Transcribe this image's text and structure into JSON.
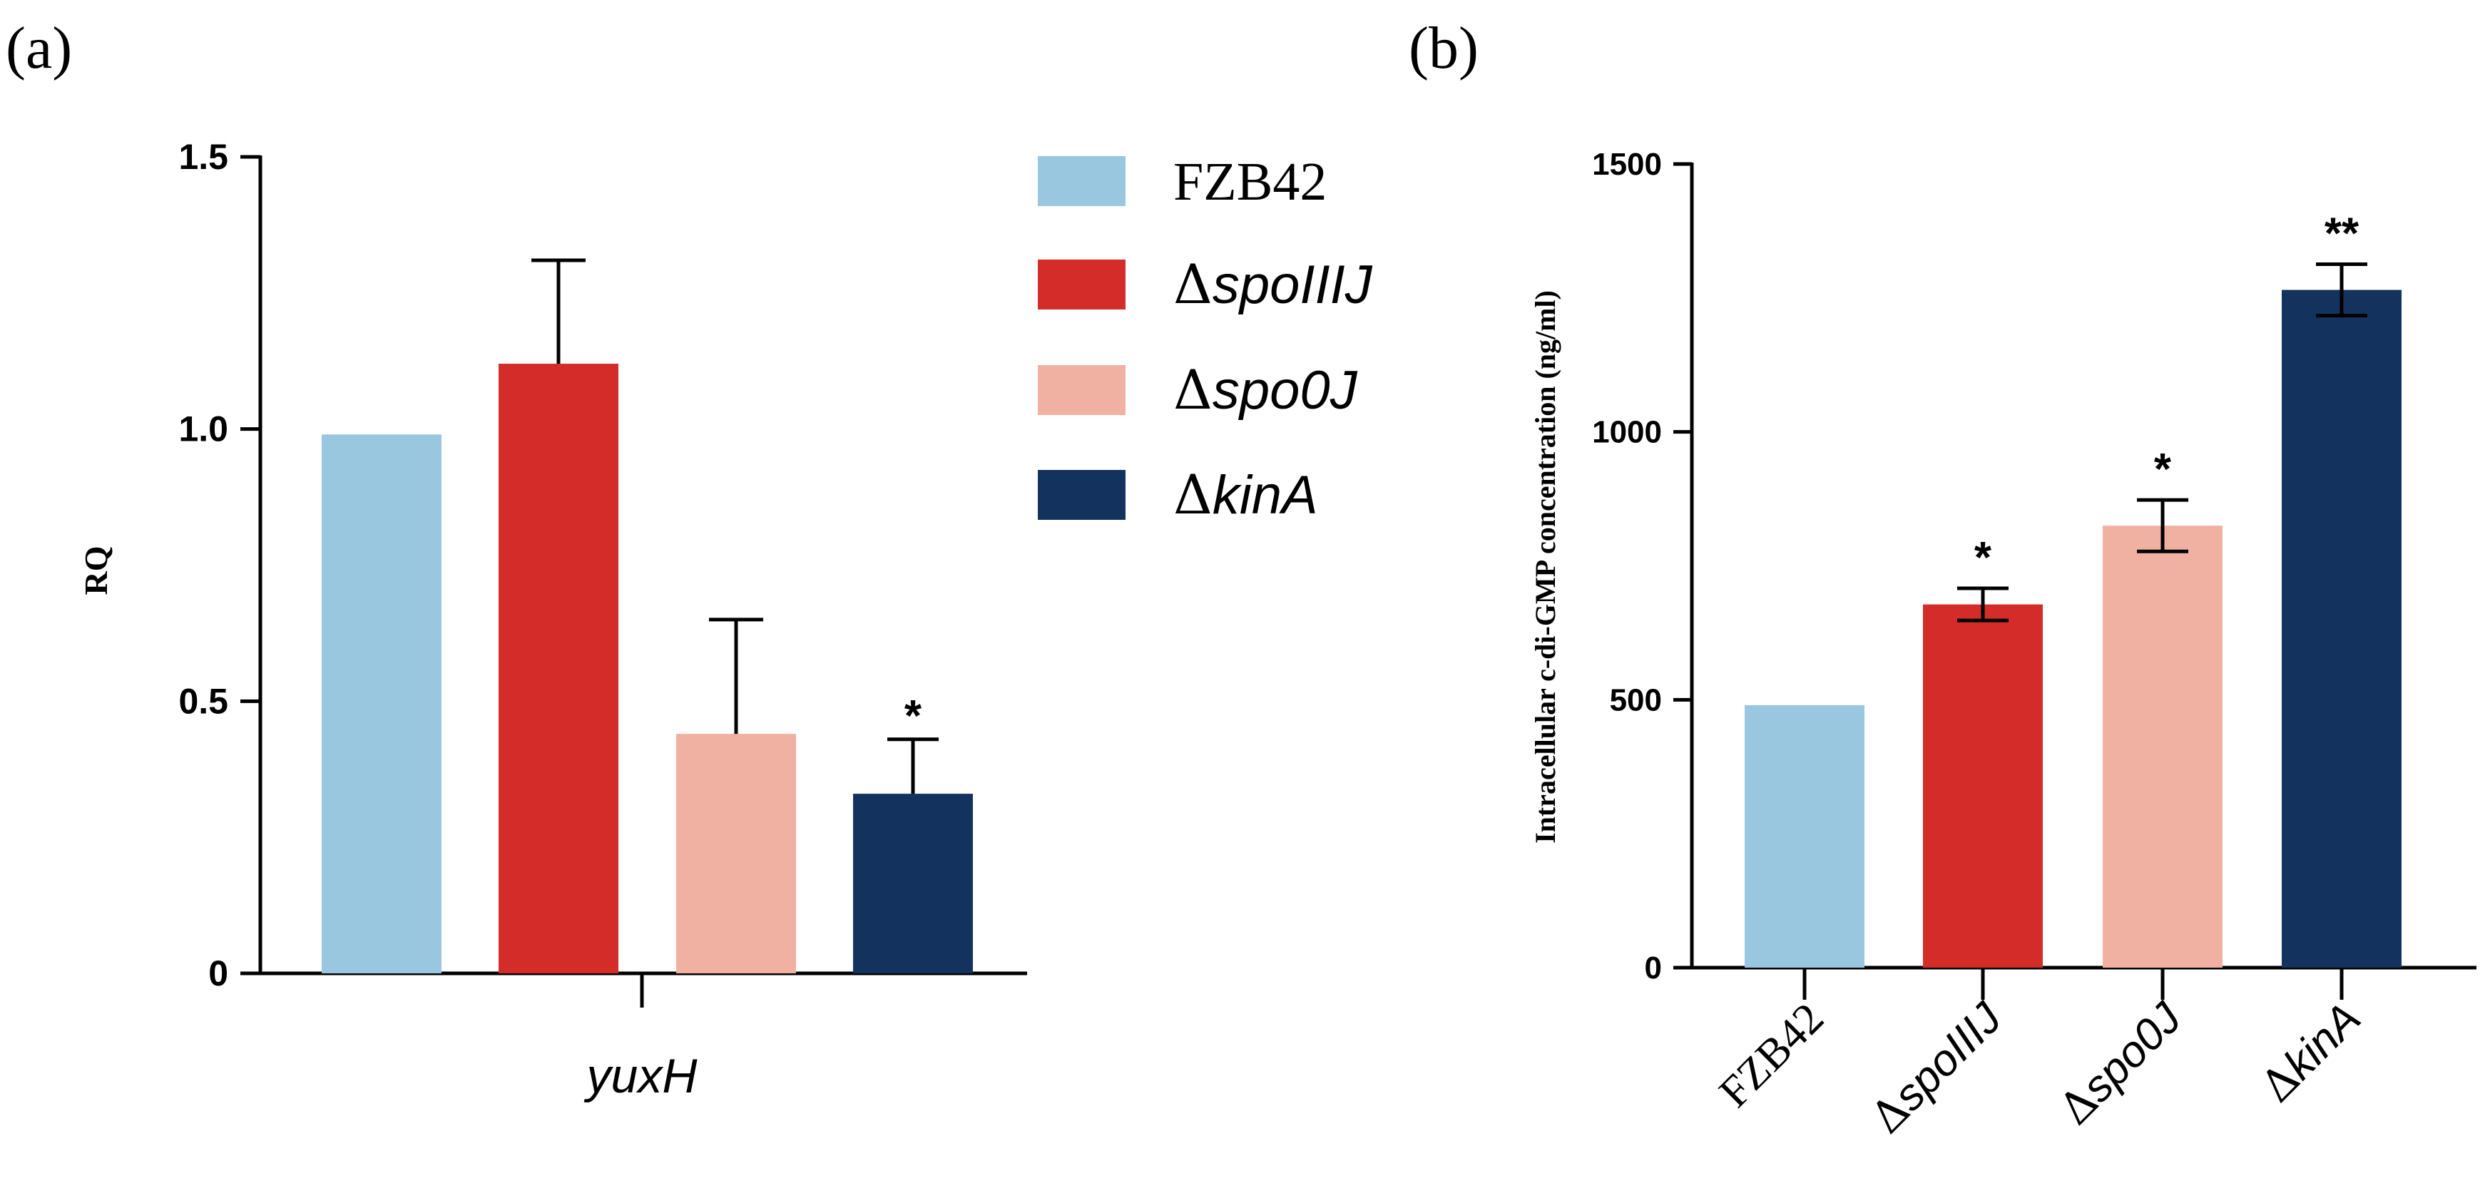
{
  "panels": {
    "a": {
      "label": "(a)"
    },
    "b": {
      "label": "(b)"
    }
  },
  "colors": {
    "FZB42": "#99c7df",
    "spoIIIJ": "#d42d29",
    "spo0J": "#f0b1a3",
    "kinA": "#14325e"
  },
  "chart_data": [
    {
      "panel": "a",
      "type": "bar",
      "title": "",
      "xlabel": "yuxH",
      "ylabel": "RQ",
      "ylim": [
        0,
        1.5
      ],
      "yticks": [
        0,
        0.5,
        1.0,
        1.5
      ],
      "ytick_labels": [
        "0",
        "0.5",
        "1.0",
        "1.5"
      ],
      "categories": [
        "yuxH"
      ],
      "series": [
        {
          "name": "FZB42",
          "delta": "",
          "italic": "",
          "values": [
            0.99
          ],
          "error": [
            0.0
          ],
          "sig": "",
          "color_key": "FZB42"
        },
        {
          "name": "ΔspoIIIJ",
          "delta": "Δ",
          "italic": "spoIIIJ",
          "values": [
            1.12
          ],
          "error": [
            0.19
          ],
          "sig": "",
          "color_key": "spoIIIJ"
        },
        {
          "name": "Δspo0J",
          "delta": "Δ",
          "italic": "spo0J",
          "values": [
            0.44
          ],
          "error": [
            0.21
          ],
          "sig": "",
          "color_key": "spo0J"
        },
        {
          "name": "ΔkinA",
          "delta": "Δ",
          "italic": "kinA",
          "values": [
            0.33
          ],
          "error": [
            0.1
          ],
          "sig": "*",
          "color_key": "kinA"
        }
      ],
      "legend": "right"
    },
    {
      "panel": "b",
      "type": "bar",
      "title": "",
      "xlabel": "",
      "ylabel": "Intracellular c-di-GMP concentration (ng/ml)",
      "ylim": [
        0,
        1500
      ],
      "yticks": [
        0,
        500,
        1000,
        1500
      ],
      "ytick_labels": [
        "0",
        "500",
        "1000",
        "1500"
      ],
      "categories": [
        {
          "name": "FZB42",
          "delta": "",
          "italic": "",
          "plain": "FZB42"
        },
        {
          "name": "ΔspoIIIJ",
          "delta": "Δ",
          "italic": "spoIIIJ",
          "plain": ""
        },
        {
          "name": "Δspo0J",
          "delta": "Δ",
          "italic": "spo0J",
          "plain": ""
        },
        {
          "name": "ΔkinA",
          "delta": "Δ",
          "italic": "kinA",
          "plain": ""
        }
      ],
      "values": [
        490,
        678,
        825,
        1265
      ],
      "error": [
        0,
        30,
        48,
        48
      ],
      "sig": [
        "",
        "*",
        "*",
        "**"
      ],
      "color_keys": [
        "FZB42",
        "spoIIIJ",
        "spo0J",
        "kinA"
      ]
    }
  ]
}
